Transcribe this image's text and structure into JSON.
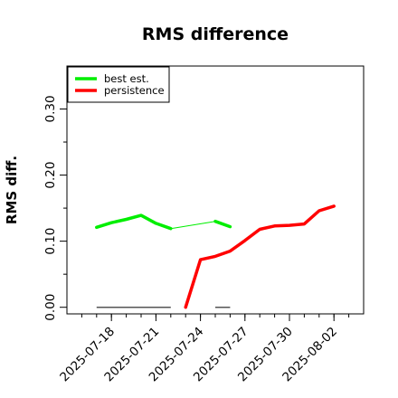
{
  "chart_data": {
    "type": "line",
    "title": "RMS difference",
    "xlabel": "",
    "ylabel": "RMS diff.",
    "xlim": [
      "2025-07-15",
      "2025-08-04"
    ],
    "ylim": [
      -0.01,
      0.365
    ],
    "x_ticks": [
      "2025-07-18",
      "2025-07-21",
      "2025-07-24",
      "2025-07-27",
      "2025-07-30",
      "2025-08-02"
    ],
    "y_ticks": [
      "0.00",
      "0.10",
      "0.20",
      "0.30"
    ],
    "y_tick_values": [
      0.0,
      0.1,
      0.2,
      0.3
    ],
    "y_minor_ticks": [
      0.05,
      0.15,
      0.25
    ],
    "legend_position": "top-left",
    "series": [
      {
        "name": "best est.",
        "color": "#00ee00",
        "segments": [
          [
            {
              "x": "2025-07-17",
              "y": 0.121
            },
            {
              "x": "2025-07-18",
              "y": 0.128
            },
            {
              "x": "2025-07-19",
              "y": 0.133
            },
            {
              "x": "2025-07-20",
              "y": 0.139
            },
            {
              "x": "2025-07-21",
              "y": 0.127
            },
            {
              "x": "2025-07-22",
              "y": 0.119
            }
          ],
          [
            {
              "x": "2025-07-25",
              "y": 0.13
            },
            {
              "x": "2025-07-26",
              "y": 0.122
            }
          ]
        ],
        "thin_connectors": [
          [
            {
              "x": "2025-07-22",
              "y": 0.119
            },
            {
              "x": "2025-07-25",
              "y": 0.13
            }
          ]
        ],
        "zero_bars": [
          [
            "2025-07-17",
            "2025-07-22"
          ],
          [
            "2025-07-25",
            "2025-07-26"
          ]
        ]
      },
      {
        "name": "persistence",
        "color": "#ff0000",
        "segments": [
          [
            {
              "x": "2025-07-23",
              "y": 0.0
            },
            {
              "x": "2025-07-24",
              "y": 0.072
            },
            {
              "x": "2025-07-25",
              "y": 0.077
            },
            {
              "x": "2025-07-26",
              "y": 0.085
            },
            {
              "x": "2025-07-27",
              "y": 0.101
            },
            {
              "x": "2025-07-28",
              "y": 0.118
            },
            {
              "x": "2025-07-29",
              "y": 0.123
            },
            {
              "x": "2025-07-30",
              "y": 0.124
            },
            {
              "x": "2025-07-31",
              "y": 0.126
            },
            {
              "x": "2025-08-01",
              "y": 0.146
            },
            {
              "x": "2025-08-02",
              "y": 0.153
            }
          ]
        ],
        "thin_connectors": [],
        "zero_bars": []
      }
    ]
  },
  "colors": {
    "zero_bar": "#555555",
    "axis": "#000000"
  }
}
